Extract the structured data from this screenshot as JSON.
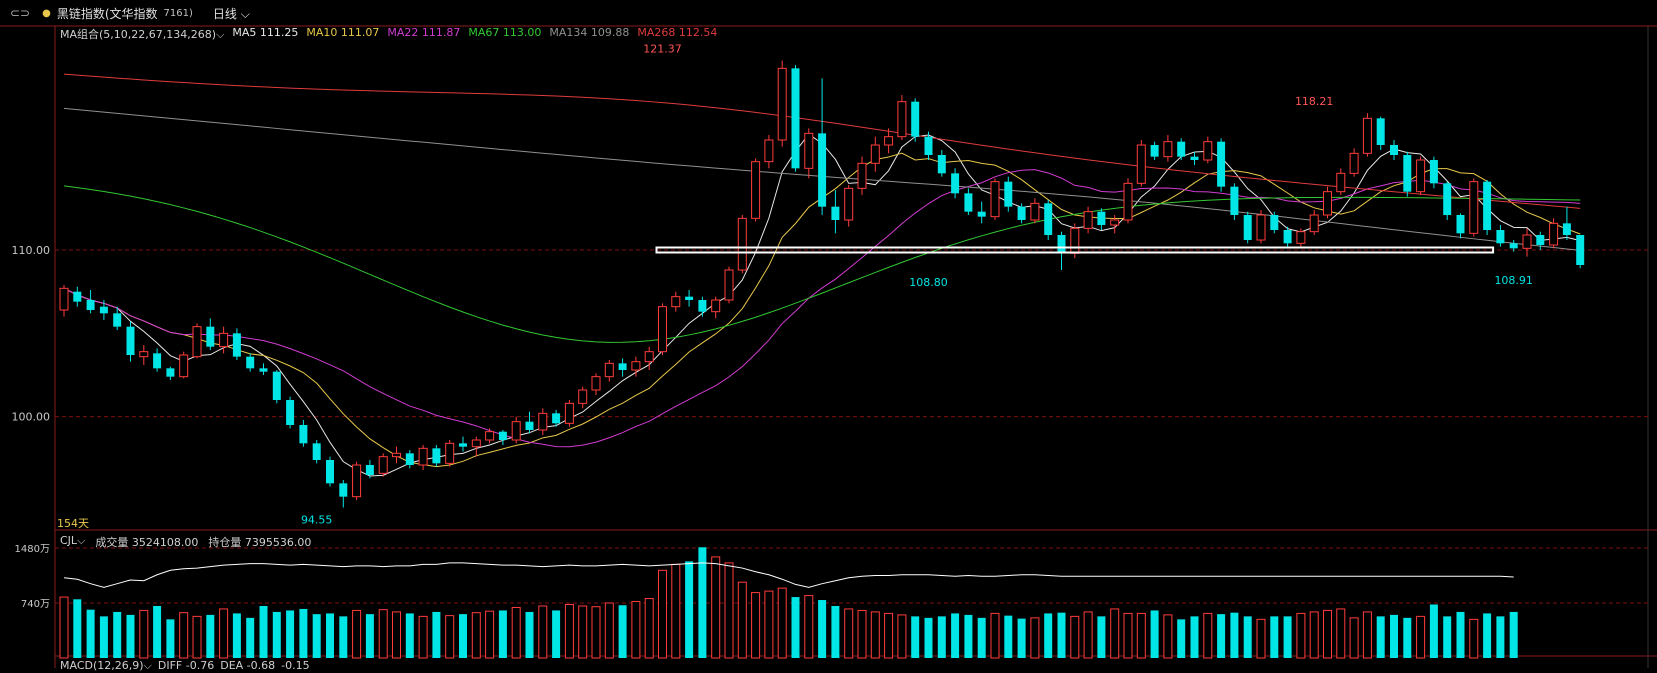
{
  "header": {
    "link_icon": "⊂⊃",
    "name": "黑链指数(文华指数",
    "code": "7161)",
    "period": "日线",
    "period_icon": "chevron-down"
  },
  "ma_legend": {
    "combo": "MA组合(5,10,22,67,134,268)",
    "items": [
      {
        "label": "MA5 111.25",
        "color": "#e8e8e8"
      },
      {
        "label": "MA10 111.07",
        "color": "#e8c84a"
      },
      {
        "label": "MA22 111.87",
        "color": "#d23cd2"
      },
      {
        "label": "MA67 113.00",
        "color": "#32c832"
      },
      {
        "label": "MA134 109.88",
        "color": "#909090"
      },
      {
        "label": "MA268 112.54",
        "color": "#e03c3c"
      }
    ]
  },
  "days_label": "154天",
  "vol_legend": {
    "name": "CJL",
    "volume": "成交量 3524108.00",
    "open_interest": "持仓量 7395536.00"
  },
  "macd_legend": {
    "name": "MACD(12,26,9)",
    "diff": "DIFF -0.76",
    "dea": "DEA -0.68",
    "macd": "-0.15"
  },
  "colors": {
    "up": "#ff3c3c",
    "down": "#00e5e5",
    "grid": "#7a1010",
    "axis": "#8a1a1a"
  },
  "chart_data": {
    "type": "candlestick",
    "y_axis": {
      "ticks": [
        100.0,
        110.0
      ],
      "tick_labels": [
        "100.00",
        "110.00"
      ],
      "range": [
        93.5,
        122.3
      ]
    },
    "volume_axis": {
      "tick_labels": [
        "1480万",
        "740万"
      ],
      "ticks": [
        1480,
        740
      ],
      "max": 1480
    },
    "annotations": [
      {
        "label": "121.37",
        "index": 45,
        "value": 121.37,
        "where": "above",
        "color": "#ff5555"
      },
      {
        "label": "108.80",
        "index": 65,
        "value": 108.8,
        "where": "below",
        "color": "#00e5e5"
      },
      {
        "label": "118.21",
        "index": 94,
        "value": 118.21,
        "where": "above",
        "color": "#ff5555"
      },
      {
        "label": "94.55",
        "index": 19,
        "value": 94.55,
        "where": "below",
        "color": "#00e5e5"
      },
      {
        "label": "108.91",
        "index": 109,
        "value": 108.91,
        "where": "below",
        "color": "#00e5e5"
      }
    ],
    "support_line": {
      "from_index": 45,
      "to_index": 107,
      "value": 110.0
    },
    "candles": [
      {
        "o": 106.4,
        "h": 107.9,
        "l": 106.0,
        "c": 107.7
      },
      {
        "o": 107.5,
        "h": 107.8,
        "l": 106.6,
        "c": 106.9
      },
      {
        "o": 107.0,
        "h": 107.6,
        "l": 106.2,
        "c": 106.4
      },
      {
        "o": 106.6,
        "h": 107.0,
        "l": 105.8,
        "c": 106.2
      },
      {
        "o": 106.2,
        "h": 106.6,
        "l": 105.2,
        "c": 105.4
      },
      {
        "o": 105.4,
        "h": 105.7,
        "l": 103.3,
        "c": 103.7
      },
      {
        "o": 103.6,
        "h": 104.3,
        "l": 103.1,
        "c": 103.9
      },
      {
        "o": 103.8,
        "h": 104.1,
        "l": 102.7,
        "c": 102.9
      },
      {
        "o": 102.9,
        "h": 103.0,
        "l": 102.2,
        "c": 102.4
      },
      {
        "o": 102.4,
        "h": 103.9,
        "l": 102.3,
        "c": 103.7
      },
      {
        "o": 103.6,
        "h": 105.6,
        "l": 103.5,
        "c": 105.4
      },
      {
        "o": 105.4,
        "h": 105.9,
        "l": 104.0,
        "c": 104.2
      },
      {
        "o": 104.2,
        "h": 105.4,
        "l": 103.8,
        "c": 105.0
      },
      {
        "o": 105.0,
        "h": 105.3,
        "l": 103.4,
        "c": 103.6
      },
      {
        "o": 103.6,
        "h": 103.8,
        "l": 102.7,
        "c": 102.9
      },
      {
        "o": 102.9,
        "h": 103.2,
        "l": 102.5,
        "c": 102.7
      },
      {
        "o": 102.7,
        "h": 102.8,
        "l": 100.8,
        "c": 101.0
      },
      {
        "o": 101.0,
        "h": 101.2,
        "l": 99.3,
        "c": 99.5
      },
      {
        "o": 99.5,
        "h": 99.8,
        "l": 98.2,
        "c": 98.4
      },
      {
        "o": 98.4,
        "h": 98.6,
        "l": 97.2,
        "c": 97.4
      },
      {
        "o": 97.4,
        "h": 97.6,
        "l": 95.8,
        "c": 96.0
      },
      {
        "o": 96.0,
        "h": 96.2,
        "l": 94.55,
        "c": 95.2
      },
      {
        "o": 95.2,
        "h": 97.3,
        "l": 95.0,
        "c": 97.1
      },
      {
        "o": 97.1,
        "h": 97.4,
        "l": 96.3,
        "c": 96.5
      },
      {
        "o": 96.6,
        "h": 97.8,
        "l": 96.4,
        "c": 97.6
      },
      {
        "o": 97.6,
        "h": 98.2,
        "l": 97.2,
        "c": 97.8
      },
      {
        "o": 97.8,
        "h": 98.0,
        "l": 96.9,
        "c": 97.1
      },
      {
        "o": 97.1,
        "h": 98.3,
        "l": 96.8,
        "c": 98.1
      },
      {
        "o": 98.1,
        "h": 98.3,
        "l": 97.0,
        "c": 97.2
      },
      {
        "o": 97.2,
        "h": 98.6,
        "l": 97.0,
        "c": 98.4
      },
      {
        "o": 98.4,
        "h": 98.8,
        "l": 97.9,
        "c": 98.2
      },
      {
        "o": 98.2,
        "h": 98.8,
        "l": 97.6,
        "c": 98.6
      },
      {
        "o": 98.6,
        "h": 99.3,
        "l": 98.4,
        "c": 99.1
      },
      {
        "o": 99.1,
        "h": 99.2,
        "l": 98.3,
        "c": 98.6
      },
      {
        "o": 98.6,
        "h": 100.0,
        "l": 98.4,
        "c": 99.7
      },
      {
        "o": 99.7,
        "h": 100.3,
        "l": 99.0,
        "c": 99.2
      },
      {
        "o": 99.2,
        "h": 100.5,
        "l": 98.9,
        "c": 100.2
      },
      {
        "o": 100.2,
        "h": 100.4,
        "l": 99.4,
        "c": 99.6
      },
      {
        "o": 99.6,
        "h": 101.0,
        "l": 99.4,
        "c": 100.8
      },
      {
        "o": 100.8,
        "h": 101.8,
        "l": 100.5,
        "c": 101.6
      },
      {
        "o": 101.6,
        "h": 102.6,
        "l": 101.3,
        "c": 102.4
      },
      {
        "o": 102.4,
        "h": 103.4,
        "l": 102.1,
        "c": 103.2
      },
      {
        "o": 103.2,
        "h": 103.5,
        "l": 102.4,
        "c": 102.8
      },
      {
        "o": 102.8,
        "h": 103.6,
        "l": 102.4,
        "c": 103.3
      },
      {
        "o": 103.3,
        "h": 104.2,
        "l": 102.8,
        "c": 103.9
      },
      {
        "o": 103.9,
        "h": 106.8,
        "l": 103.7,
        "c": 106.6
      },
      {
        "o": 106.6,
        "h": 107.5,
        "l": 106.3,
        "c": 107.2
      },
      {
        "o": 107.2,
        "h": 107.6,
        "l": 106.6,
        "c": 107.0
      },
      {
        "o": 107.0,
        "h": 107.2,
        "l": 106.0,
        "c": 106.3
      },
      {
        "o": 106.3,
        "h": 107.2,
        "l": 105.9,
        "c": 107.0
      },
      {
        "o": 107.0,
        "h": 109.0,
        "l": 106.8,
        "c": 108.8
      },
      {
        "o": 108.8,
        "h": 112.1,
        "l": 108.6,
        "c": 111.9
      },
      {
        "o": 111.9,
        "h": 115.5,
        "l": 111.7,
        "c": 115.3
      },
      {
        "o": 115.3,
        "h": 116.9,
        "l": 114.9,
        "c": 116.6
      },
      {
        "o": 116.6,
        "h": 121.37,
        "l": 116.2,
        "c": 120.9
      },
      {
        "o": 120.9,
        "h": 121.1,
        "l": 114.7,
        "c": 114.9
      },
      {
        "o": 114.9,
        "h": 117.3,
        "l": 114.3,
        "c": 117.0
      },
      {
        "o": 117.0,
        "h": 120.3,
        "l": 112.1,
        "c": 112.6
      },
      {
        "o": 112.6,
        "h": 113.6,
        "l": 111.0,
        "c": 111.8
      },
      {
        "o": 111.8,
        "h": 113.9,
        "l": 111.4,
        "c": 113.7
      },
      {
        "o": 113.7,
        "h": 115.6,
        "l": 113.3,
        "c": 115.2
      },
      {
        "o": 115.2,
        "h": 116.8,
        "l": 114.7,
        "c": 116.3
      },
      {
        "o": 116.3,
        "h": 117.3,
        "l": 115.8,
        "c": 116.8
      },
      {
        "o": 116.8,
        "h": 119.3,
        "l": 116.6,
        "c": 118.9
      },
      {
        "o": 118.9,
        "h": 119.1,
        "l": 116.5,
        "c": 116.8
      },
      {
        "o": 116.8,
        "h": 117.1,
        "l": 115.4,
        "c": 115.7
      },
      {
        "o": 115.7,
        "h": 116.0,
        "l": 114.4,
        "c": 114.6
      },
      {
        "o": 114.6,
        "h": 114.9,
        "l": 113.1,
        "c": 113.4
      },
      {
        "o": 113.4,
        "h": 113.7,
        "l": 112.1,
        "c": 112.3
      },
      {
        "o": 112.3,
        "h": 112.9,
        "l": 111.6,
        "c": 112.0
      },
      {
        "o": 112.0,
        "h": 114.3,
        "l": 111.8,
        "c": 114.1
      },
      {
        "o": 114.1,
        "h": 114.4,
        "l": 112.3,
        "c": 112.6
      },
      {
        "o": 112.6,
        "h": 112.8,
        "l": 111.6,
        "c": 111.8
      },
      {
        "o": 111.8,
        "h": 113.1,
        "l": 111.6,
        "c": 112.8
      },
      {
        "o": 112.8,
        "h": 113.0,
        "l": 110.6,
        "c": 110.9
      },
      {
        "o": 110.9,
        "h": 111.1,
        "l": 108.8,
        "c": 109.8
      },
      {
        "o": 109.8,
        "h": 111.6,
        "l": 109.5,
        "c": 111.3
      },
      {
        "o": 111.3,
        "h": 112.6,
        "l": 111.0,
        "c": 112.3
      },
      {
        "o": 112.3,
        "h": 112.5,
        "l": 111.2,
        "c": 111.5
      },
      {
        "o": 111.5,
        "h": 112.1,
        "l": 111.0,
        "c": 111.8
      },
      {
        "o": 111.8,
        "h": 114.3,
        "l": 111.6,
        "c": 114.0
      },
      {
        "o": 114.0,
        "h": 116.6,
        "l": 113.8,
        "c": 116.3
      },
      {
        "o": 116.3,
        "h": 116.5,
        "l": 115.4,
        "c": 115.6
      },
      {
        "o": 115.6,
        "h": 116.9,
        "l": 115.3,
        "c": 116.5
      },
      {
        "o": 116.5,
        "h": 116.7,
        "l": 115.4,
        "c": 115.6
      },
      {
        "o": 115.6,
        "h": 115.9,
        "l": 115.1,
        "c": 115.4
      },
      {
        "o": 115.4,
        "h": 116.8,
        "l": 115.2,
        "c": 116.5
      },
      {
        "o": 116.5,
        "h": 116.7,
        "l": 113.5,
        "c": 113.8
      },
      {
        "o": 113.8,
        "h": 114.0,
        "l": 111.8,
        "c": 112.1
      },
      {
        "o": 112.1,
        "h": 112.3,
        "l": 110.4,
        "c": 110.6
      },
      {
        "o": 110.6,
        "h": 112.4,
        "l": 110.4,
        "c": 112.1
      },
      {
        "o": 112.1,
        "h": 112.3,
        "l": 111.0,
        "c": 111.2
      },
      {
        "o": 111.2,
        "h": 111.4,
        "l": 110.1,
        "c": 110.4
      },
      {
        "o": 110.4,
        "h": 111.3,
        "l": 110.2,
        "c": 111.1
      },
      {
        "o": 111.1,
        "h": 112.4,
        "l": 110.9,
        "c": 112.1
      },
      {
        "o": 112.1,
        "h": 113.8,
        "l": 111.9,
        "c": 113.5
      },
      {
        "o": 113.5,
        "h": 114.9,
        "l": 113.3,
        "c": 114.6
      },
      {
        "o": 114.6,
        "h": 116.1,
        "l": 114.4,
        "c": 115.8
      },
      {
        "o": 115.8,
        "h": 118.21,
        "l": 115.6,
        "c": 117.9
      },
      {
        "o": 117.9,
        "h": 118.0,
        "l": 116.0,
        "c": 116.3
      },
      {
        "o": 116.3,
        "h": 116.6,
        "l": 115.4,
        "c": 115.7
      },
      {
        "o": 115.7,
        "h": 115.9,
        "l": 113.2,
        "c": 113.5
      },
      {
        "o": 113.5,
        "h": 115.6,
        "l": 113.3,
        "c": 115.4
      },
      {
        "o": 115.4,
        "h": 115.6,
        "l": 113.7,
        "c": 114.0
      },
      {
        "o": 114.0,
        "h": 114.1,
        "l": 111.8,
        "c": 112.1
      },
      {
        "o": 112.1,
        "h": 112.2,
        "l": 110.7,
        "c": 111.0
      },
      {
        "o": 111.0,
        "h": 114.3,
        "l": 110.8,
        "c": 114.1
      },
      {
        "o": 114.1,
        "h": 114.2,
        "l": 110.9,
        "c": 111.2
      },
      {
        "o": 111.2,
        "h": 111.5,
        "l": 110.2,
        "c": 110.4
      },
      {
        "o": 110.4,
        "h": 110.6,
        "l": 109.9,
        "c": 110.1
      },
      {
        "o": 110.1,
        "h": 111.3,
        "l": 109.6,
        "c": 110.9
      },
      {
        "o": 110.9,
        "h": 111.1,
        "l": 110.0,
        "c": 110.3
      },
      {
        "o": 110.3,
        "h": 111.9,
        "l": 110.1,
        "c": 111.6
      },
      {
        "o": 111.6,
        "h": 112.6,
        "l": 110.6,
        "c": 110.9
      },
      {
        "o": 110.9,
        "h": 110.9,
        "l": 108.91,
        "c": 109.1
      }
    ],
    "volumes": [
      820,
      790,
      650,
      560,
      620,
      580,
      640,
      700,
      520,
      610,
      560,
      580,
      660,
      600,
      540,
      700,
      620,
      640,
      660,
      590,
      600,
      560,
      640,
      590,
      650,
      620,
      600,
      560,
      620,
      570,
      590,
      610,
      630,
      640,
      680,
      620,
      700,
      640,
      720,
      700,
      690,
      740,
      710,
      760,
      800,
      1180,
      1260,
      1300,
      1490,
      1360,
      1280,
      1020,
      880,
      900,
      940,
      820,
      840,
      780,
      700,
      660,
      640,
      620,
      600,
      580,
      560,
      540,
      560,
      600,
      580,
      540,
      600,
      570,
      530,
      540,
      600,
      610,
      560,
      620,
      560,
      660,
      600,
      600,
      640,
      580,
      520,
      560,
      600,
      590,
      610,
      560,
      520,
      560,
      560,
      600,
      620,
      640,
      660,
      540,
      620,
      560,
      580,
      540,
      560,
      720,
      560,
      620,
      520,
      600,
      560,
      620
    ],
    "vol_line": [
      1080,
      1060,
      1000,
      950,
      1000,
      1050,
      1040,
      1120,
      1180,
      1200,
      1210,
      1230,
      1250,
      1260,
      1270,
      1270,
      1260,
      1250,
      1260,
      1250,
      1240,
      1230,
      1240,
      1240,
      1230,
      1240,
      1240,
      1260,
      1260,
      1280,
      1280,
      1270,
      1260,
      1250,
      1250,
      1240,
      1230,
      1240,
      1250,
      1240,
      1240,
      1250,
      1260,
      1250,
      1240,
      1250,
      1260,
      1270,
      1280,
      1270,
      1240,
      1210,
      1160,
      1120,
      1060,
      990,
      950,
      1000,
      1040,
      1080,
      1100,
      1110,
      1110,
      1120,
      1120,
      1120,
      1110,
      1100,
      1110,
      1100,
      1100,
      1110,
      1120,
      1120,
      1110,
      1100,
      1100,
      1100,
      1100,
      1100,
      1100,
      1100,
      1100,
      1100,
      1100,
      1100,
      1100,
      1100,
      1100,
      1100,
      1100,
      1100,
      1100,
      1100,
      1100,
      1100,
      1100,
      1100,
      1100,
      1100,
      1100,
      1100,
      1100,
      1100,
      1100,
      1100,
      1100,
      1100,
      1100,
      1090
    ]
  }
}
